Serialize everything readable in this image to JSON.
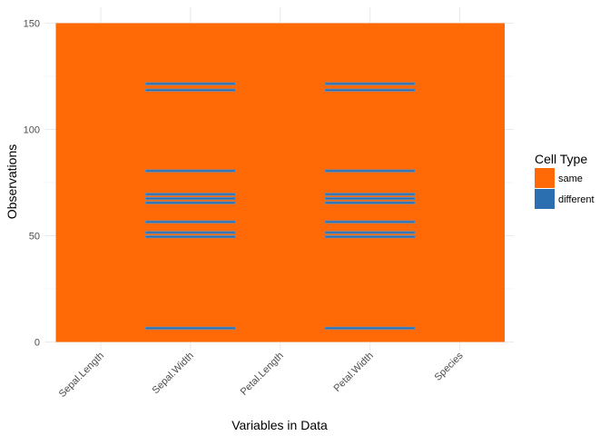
{
  "chart_data": {
    "type": "heatmap",
    "title": "",
    "xlabel": "Variables in Data",
    "ylabel": "Observations",
    "categories": [
      "Sepal.Length",
      "Sepal.Width",
      "Petal.Length",
      "Petal.Width",
      "Species"
    ],
    "ylim": [
      0,
      150
    ],
    "y_ticks": [
      0,
      50,
      100,
      150
    ],
    "y_tick_labels": [
      "0",
      "50",
      "100",
      "150"
    ],
    "grid": true,
    "legend": {
      "title": "Cell Type",
      "position": "right",
      "entries": [
        {
          "label": "same",
          "color": "#FF6A07"
        },
        {
          "label": "different",
          "color": "#2C6FB1"
        }
      ]
    },
    "different_cells": [
      {
        "variable": "Sepal.Width",
        "rows": [
          7,
          50,
          52,
          57,
          66,
          68,
          70,
          81,
          119,
          122
        ]
      },
      {
        "variable": "Petal.Width",
        "rows": [
          7,
          50,
          52,
          57,
          66,
          68,
          70,
          81,
          119,
          122
        ]
      }
    ]
  },
  "colors": {
    "same": "#FF6A07",
    "different": "#2C6FB1",
    "divider": "#5A90C0",
    "grid": "#EBEBEB"
  }
}
